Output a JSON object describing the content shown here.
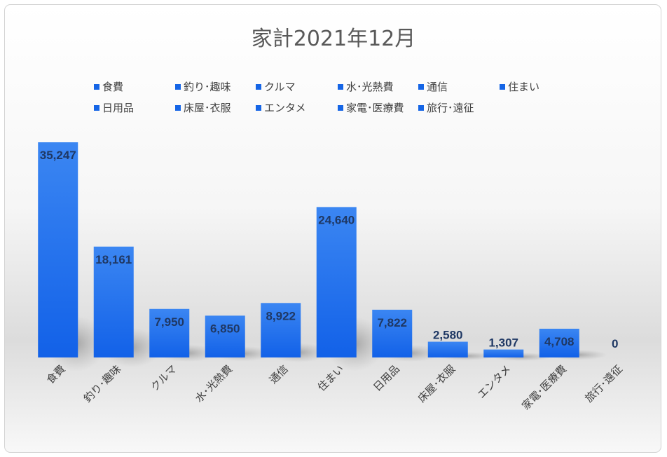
{
  "chart_data": {
    "type": "bar",
    "title": "家計2021年12月",
    "categories": [
      "食費",
      "釣り･趣味",
      "クルマ",
      "水･光熱費",
      "通信",
      "住まい",
      "日用品",
      "床屋･衣服",
      "エンタメ",
      "家電･医療費",
      "旅行･遠征"
    ],
    "values": [
      35247,
      18161,
      7950,
      6850,
      8922,
      24640,
      7822,
      2580,
      1307,
      4708,
      0
    ],
    "value_labels": [
      "35,247",
      "18,161",
      "7,950",
      "6,850",
      "8,922",
      "24,640",
      "7,822",
      "2,580",
      "1,307",
      "4,708",
      "0"
    ],
    "xlabel": "",
    "ylabel": "",
    "ylim": [
      0,
      36000
    ],
    "grid": false,
    "legend_position": "top",
    "bar_color": "#2f7ef0",
    "bar_color_dark": "#1565e6",
    "label_color": "#1f3864"
  }
}
